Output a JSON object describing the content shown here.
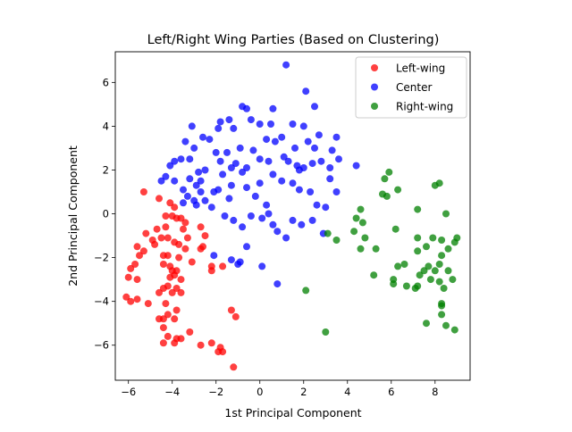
{
  "chart_data": {
    "type": "scatter",
    "title": "Left/Right Wing Parties (Based on Clustering)",
    "xlabel": "1st Principal Component",
    "ylabel": "2nd Principal Component",
    "xlim": [
      -6.6,
      9.6
    ],
    "ylim": [
      -7.6,
      7.4
    ],
    "xticks": [
      -6,
      -4,
      -2,
      0,
      2,
      4,
      6,
      8
    ],
    "yticks": [
      -6,
      -4,
      -2,
      0,
      2,
      4,
      6
    ],
    "grid": false,
    "legend_position": "top-right",
    "series": [
      {
        "name": "Left-wing",
        "color": "#ff0000",
        "points": [
          [
            -5.3,
            1.0
          ],
          [
            -4.6,
            0.7
          ],
          [
            -5.2,
            -0.9
          ],
          [
            -5.6,
            -1.5
          ],
          [
            -5.5,
            -1.9
          ],
          [
            -5.3,
            -1.7
          ],
          [
            -5.7,
            -2.3
          ],
          [
            -5.9,
            -2.5
          ],
          [
            -6.0,
            -2.9
          ],
          [
            -5.6,
            -3.0
          ],
          [
            -6.1,
            -3.8
          ],
          [
            -5.9,
            -4.0
          ],
          [
            -5.6,
            -3.9
          ],
          [
            -5.1,
            -4.1
          ],
          [
            -4.9,
            -1.2
          ],
          [
            -4.8,
            -1.4
          ],
          [
            -4.7,
            -0.7
          ],
          [
            -4.5,
            -1.1
          ],
          [
            -4.3,
            -0.6
          ],
          [
            -4.2,
            -1.1
          ],
          [
            -4.4,
            -1.9
          ],
          [
            -4.2,
            -1.9
          ],
          [
            -4.4,
            -2.3
          ],
          [
            -4.1,
            -2.4
          ],
          [
            -4.0,
            -2.6
          ],
          [
            -3.8,
            -2.6
          ],
          [
            -4.1,
            -2.9
          ],
          [
            -3.9,
            -2.8
          ],
          [
            -3.6,
            -3.0
          ],
          [
            -4.1,
            0.5
          ],
          [
            -3.9,
            0.3
          ],
          [
            -4.0,
            -0.1
          ],
          [
            -4.3,
            -0.1
          ],
          [
            -3.8,
            -0.2
          ],
          [
            -3.6,
            -0.2
          ],
          [
            -3.5,
            -0.7
          ],
          [
            -3.9,
            -1.3
          ],
          [
            -3.7,
            -1.4
          ],
          [
            -3.3,
            -1.1
          ],
          [
            -3.4,
            -1.6
          ],
          [
            -3.7,
            -2.0
          ],
          [
            -3.1,
            -2.2
          ],
          [
            -4.6,
            -3.6
          ],
          [
            -4.4,
            -3.4
          ],
          [
            -4.2,
            -3.3
          ],
          [
            -4.0,
            -3.6
          ],
          [
            -3.8,
            -3.4
          ],
          [
            -3.6,
            -3.6
          ],
          [
            -4.3,
            -4.1
          ],
          [
            -4.2,
            -4.6
          ],
          [
            -3.8,
            -4.4
          ],
          [
            -4.6,
            -4.8
          ],
          [
            -4.4,
            -4.8
          ],
          [
            -4.2,
            -5.6
          ],
          [
            -3.9,
            -4.8
          ],
          [
            -3.8,
            -5.7
          ],
          [
            -3.6,
            -5.7
          ],
          [
            -4.4,
            -5.2
          ],
          [
            -4.4,
            -5.9
          ],
          [
            -3.9,
            -5.9
          ],
          [
            -3.2,
            -5.4
          ],
          [
            -2.7,
            -6.0
          ],
          [
            -2.2,
            -5.9
          ],
          [
            -1.8,
            -6.1
          ],
          [
            -1.9,
            -6.3
          ],
          [
            -1.7,
            -6.3
          ],
          [
            -1.2,
            -7.0
          ],
          [
            -1.3,
            -4.4
          ],
          [
            -1.1,
            -4.7
          ],
          [
            -1.7,
            -2.4
          ],
          [
            -2.2,
            -2.4
          ],
          [
            -2.2,
            -2.6
          ],
          [
            -2.6,
            -1.5
          ],
          [
            -2.5,
            -1.0
          ],
          [
            -2.7,
            -1.6
          ],
          [
            -2.7,
            -0.6
          ],
          [
            -3.4,
            -0.4
          ]
        ]
      },
      {
        "name": "Center",
        "color": "#0000ff",
        "points": [
          [
            1.2,
            6.8
          ],
          [
            2.1,
            5.6
          ],
          [
            2.5,
            4.9
          ],
          [
            -3.1,
            4.0
          ],
          [
            -1.8,
            4.2
          ],
          [
            -1.4,
            4.3
          ],
          [
            -0.8,
            4.9
          ],
          [
            -0.6,
            4.8
          ],
          [
            -2.6,
            3.5
          ],
          [
            -3.4,
            3.3
          ],
          [
            -2.3,
            3.4
          ],
          [
            -1.9,
            3.9
          ],
          [
            -1.2,
            3.9
          ],
          [
            -0.4,
            4.3
          ],
          [
            0.0,
            4.1
          ],
          [
            0.5,
            4.1
          ],
          [
            0.6,
            4.8
          ],
          [
            1.5,
            4.1
          ],
          [
            2.0,
            4.0
          ],
          [
            2.7,
            3.6
          ],
          [
            3.5,
            3.5
          ],
          [
            -3.9,
            2.4
          ],
          [
            -4.1,
            2.2
          ],
          [
            -4.5,
            1.5
          ],
          [
            -4.3,
            1.7
          ],
          [
            -3.6,
            2.5
          ],
          [
            -3.2,
            2.5
          ],
          [
            -2.5,
            2.0
          ],
          [
            -2.7,
            1.5
          ],
          [
            -2.8,
            1.9
          ],
          [
            -3.0,
            3.0
          ],
          [
            -2.0,
            2.8
          ],
          [
            -1.8,
            2.4
          ],
          [
            -1.5,
            2.8
          ],
          [
            -1.3,
            2.1
          ],
          [
            -1.1,
            2.3
          ],
          [
            -0.9,
            3.0
          ],
          [
            -0.6,
            2.1
          ],
          [
            -0.3,
            2.9
          ],
          [
            0.0,
            2.5
          ],
          [
            0.3,
            3.4
          ],
          [
            0.4,
            2.4
          ],
          [
            0.7,
            3.3
          ],
          [
            1.0,
            3.5
          ],
          [
            1.1,
            2.6
          ],
          [
            1.3,
            2.4
          ],
          [
            1.6,
            3.0
          ],
          [
            1.7,
            2.2
          ],
          [
            2.0,
            2.1
          ],
          [
            2.2,
            3.3
          ],
          [
            2.5,
            3.0
          ],
          [
            2.4,
            2.3
          ],
          [
            2.8,
            2.4
          ],
          [
            3.3,
            2.9
          ],
          [
            3.6,
            2.5
          ],
          [
            4.4,
            2.2
          ],
          [
            3.2,
            2.1
          ],
          [
            -3.9,
            1.5
          ],
          [
            -3.5,
            1.1
          ],
          [
            -3.2,
            1.6
          ],
          [
            -3.3,
            0.8
          ],
          [
            -3.0,
            0.6
          ],
          [
            -2.7,
            1.0
          ],
          [
            -2.5,
            0.6
          ],
          [
            -2.1,
            1.0
          ],
          [
            -1.9,
            1.1
          ],
          [
            -1.4,
            0.7
          ],
          [
            -1.3,
            1.3
          ],
          [
            -0.8,
            1.9
          ],
          [
            -0.6,
            1.2
          ],
          [
            -0.2,
            0.8
          ],
          [
            0.0,
            1.4
          ],
          [
            0.3,
            0.4
          ],
          [
            0.6,
            1.8
          ],
          [
            1.0,
            1.5
          ],
          [
            1.5,
            1.4
          ],
          [
            1.8,
            2.0
          ],
          [
            2.3,
            1.0
          ],
          [
            2.6,
            0.4
          ],
          [
            3.2,
            1.6
          ],
          [
            3.5,
            1.0
          ],
          [
            -3.5,
            0.5
          ],
          [
            -2.9,
            0.4
          ],
          [
            -2.2,
            0.3
          ],
          [
            -1.6,
            -0.1
          ],
          [
            -1.2,
            -0.3
          ],
          [
            -0.8,
            -0.6
          ],
          [
            -0.4,
            -0.1
          ],
          [
            0.1,
            -0.2
          ],
          [
            0.4,
            0.0
          ],
          [
            0.8,
            -0.8
          ],
          [
            1.2,
            -1.1
          ],
          [
            1.5,
            -0.3
          ],
          [
            1.9,
            -0.5
          ],
          [
            2.4,
            -0.3
          ],
          [
            2.9,
            -0.9
          ],
          [
            3.0,
            0.3
          ],
          [
            -0.6,
            -1.5
          ],
          [
            -0.9,
            -2.2
          ],
          [
            -1.3,
            -2.1
          ],
          [
            -2.1,
            -1.9
          ],
          [
            0.1,
            -2.4
          ],
          [
            0.8,
            -3.2
          ],
          [
            -1.0,
            -2.3
          ],
          [
            0.6,
            -0.5
          ],
          [
            1.8,
            1.1
          ],
          [
            -1.7,
            1.8
          ],
          [
            -2.9,
            1.3
          ]
        ]
      },
      {
        "name": "Right-wing",
        "color": "#008000",
        "points": [
          [
            5.9,
            1.9
          ],
          [
            5.7,
            1.6
          ],
          [
            5.6,
            0.9
          ],
          [
            5.8,
            0.8
          ],
          [
            6.3,
            1.1
          ],
          [
            4.6,
            0.2
          ],
          [
            4.4,
            -0.2
          ],
          [
            4.7,
            -0.4
          ],
          [
            4.3,
            -0.8
          ],
          [
            4.8,
            -1.1
          ],
          [
            4.6,
            -1.6
          ],
          [
            5.3,
            -1.6
          ],
          [
            3.1,
            -0.9
          ],
          [
            3.5,
            -1.2
          ],
          [
            2.1,
            -3.5
          ],
          [
            3.0,
            -5.4
          ],
          [
            5.2,
            -2.8
          ],
          [
            6.2,
            -0.7
          ],
          [
            6.3,
            -2.4
          ],
          [
            6.6,
            -2.3
          ],
          [
            6.1,
            -3.0
          ],
          [
            6.1,
            -3.2
          ],
          [
            6.7,
            -3.3
          ],
          [
            7.2,
            -3.3
          ],
          [
            7.1,
            -3.4
          ],
          [
            7.3,
            -2.8
          ],
          [
            7.5,
            -2.6
          ],
          [
            7.8,
            -3.0
          ],
          [
            7.7,
            -2.4
          ],
          [
            8.0,
            -2.6
          ],
          [
            8.2,
            -3.1
          ],
          [
            8.3,
            -4.2
          ],
          [
            8.4,
            -3.4
          ],
          [
            8.6,
            -2.6
          ],
          [
            8.8,
            -3.0
          ],
          [
            7.2,
            -1.1
          ],
          [
            7.6,
            -1.5
          ],
          [
            7.9,
            -1.1
          ],
          [
            8.3,
            -1.2
          ],
          [
            8.6,
            -1.6
          ],
          [
            8.9,
            -1.3
          ],
          [
            9.0,
            -1.1
          ],
          [
            8.3,
            -1.9
          ],
          [
            8.2,
            -2.3
          ],
          [
            7.2,
            -1.7
          ],
          [
            7.6,
            -5.0
          ],
          [
            8.3,
            -4.6
          ],
          [
            8.5,
            -5.1
          ],
          [
            8.9,
            -5.3
          ],
          [
            8.0,
            1.3
          ],
          [
            8.2,
            1.4
          ],
          [
            7.2,
            0.2
          ],
          [
            8.5,
            0.0
          ],
          [
            8.3,
            -4.1
          ]
        ]
      }
    ]
  }
}
